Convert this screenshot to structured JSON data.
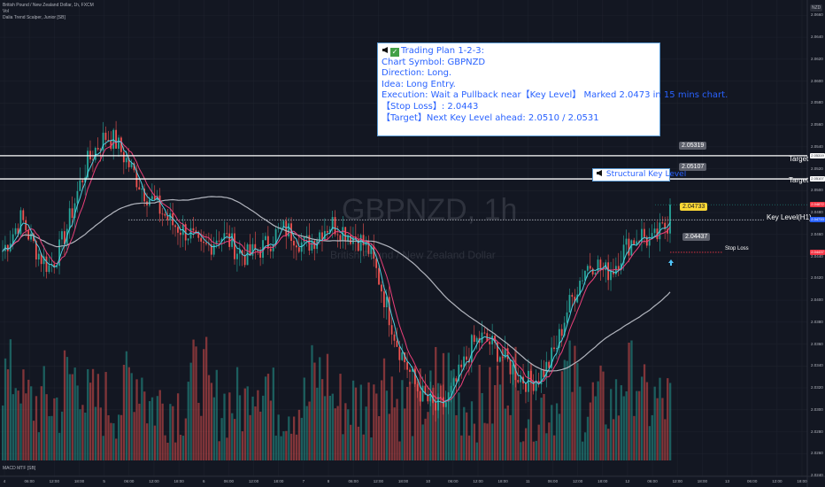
{
  "header": {
    "title": "British Pound / New Zealand Dollar, 1h, FXCM",
    "line2": "Vol",
    "line3": "Dalia Trend Scalper, Junior [SB]",
    "bottom_indicator": "MACD MTF [SB]",
    "currency": "NZD"
  },
  "watermark": {
    "symbol": "GBPNZD, 1h",
    "name": "British Pound / New Zealand Dollar"
  },
  "trading_plan": {
    "line1": "Trading Plan 1-2-3:",
    "line2": "Chart Symbol: GBPNZD",
    "line3": "Direction: Long.",
    "line4": "Idea: Long Entry.",
    "line5": "Execution: Wait a Pullback near【Key Level】 Marked 2.0473 in 15 mins chart.",
    "line6": "【Stop Loss】: 2.0443",
    "line7": "【Target】Next Key Level ahead: 2.0510 / 2.0531"
  },
  "structural_key_level": "Structural Key Level",
  "levels": {
    "target1": {
      "label": "Target",
      "value": "2.05319"
    },
    "target2": {
      "label": "Target",
      "value": "2.05107"
    },
    "key_level": {
      "label": "Key Level(H1)",
      "value": "2.04733"
    },
    "stop_loss": {
      "label": "Stop Loss",
      "value": "2.04437"
    }
  },
  "colors": {
    "background": "#131722",
    "up": "#26a69a",
    "down": "#ef5350",
    "ma_fast": "#4dd0e1",
    "ma_slow": "#ec407a",
    "ma_long": "#b2b5be",
    "key_tag": "#fdd835",
    "stop_line": "#f23645"
  },
  "x_axis_labels": [
    "4",
    "06:00",
    "12:00",
    "18:00",
    "5",
    "06:00",
    "12:00",
    "18:00",
    "6",
    "06:00",
    "12:00",
    "18:00",
    "7",
    "8",
    "06:00",
    "12:00",
    "18:00",
    "10",
    "06:00",
    "12:00",
    "18:00",
    "11",
    "06:00",
    "12:00",
    "18:00",
    "12",
    "06:00",
    "12:00",
    "18:00",
    "13",
    "06:00",
    "12:00",
    "18:00"
  ],
  "chart_data": {
    "type": "candlestick",
    "title": "British Pound / New Zealand Dollar, 1h, FXCM",
    "y_ticks": [
      2.066,
      2.064,
      2.062,
      2.06,
      2.058,
      2.056,
      2.054,
      2.052,
      2.05,
      2.048,
      2.046,
      2.044,
      2.042,
      2.04,
      2.038,
      2.036,
      2.034,
      2.032,
      2.03,
      2.028,
      2.026,
      2.024
    ],
    "ylim": [
      2.024,
      2.067
    ],
    "approx_close_path": [
      2.0445,
      2.046,
      2.0475,
      2.0455,
      2.044,
      2.043,
      2.0445,
      2.047,
      2.05,
      2.0525,
      2.054,
      2.055,
      2.0545,
      2.053,
      2.0515,
      2.05,
      2.049,
      2.048,
      2.047,
      2.0465,
      2.046,
      2.0445,
      2.045,
      2.046,
      2.0455,
      2.0445,
      2.044,
      2.0445,
      2.045,
      2.046,
      2.0465,
      2.046,
      2.045,
      2.0455,
      2.0465,
      2.047,
      2.0465,
      2.046,
      2.0455,
      2.0445,
      2.042,
      2.039,
      2.036,
      2.034,
      2.032,
      2.031,
      2.03,
      2.0305,
      2.032,
      2.034,
      2.036,
      2.0365,
      2.036,
      2.035,
      2.034,
      2.033,
      2.0325,
      2.033,
      2.034,
      2.036,
      2.039,
      2.041,
      2.043,
      2.0435,
      2.0425,
      2.043,
      2.0445,
      2.0455,
      2.046,
      2.0452,
      2.0462,
      2.0473
    ],
    "levels": {
      "target_upper": 2.05319,
      "target_lower": 2.05107,
      "key_level": 2.04733,
      "stop_loss": 2.04437,
      "last_price": 2.04872
    }
  }
}
